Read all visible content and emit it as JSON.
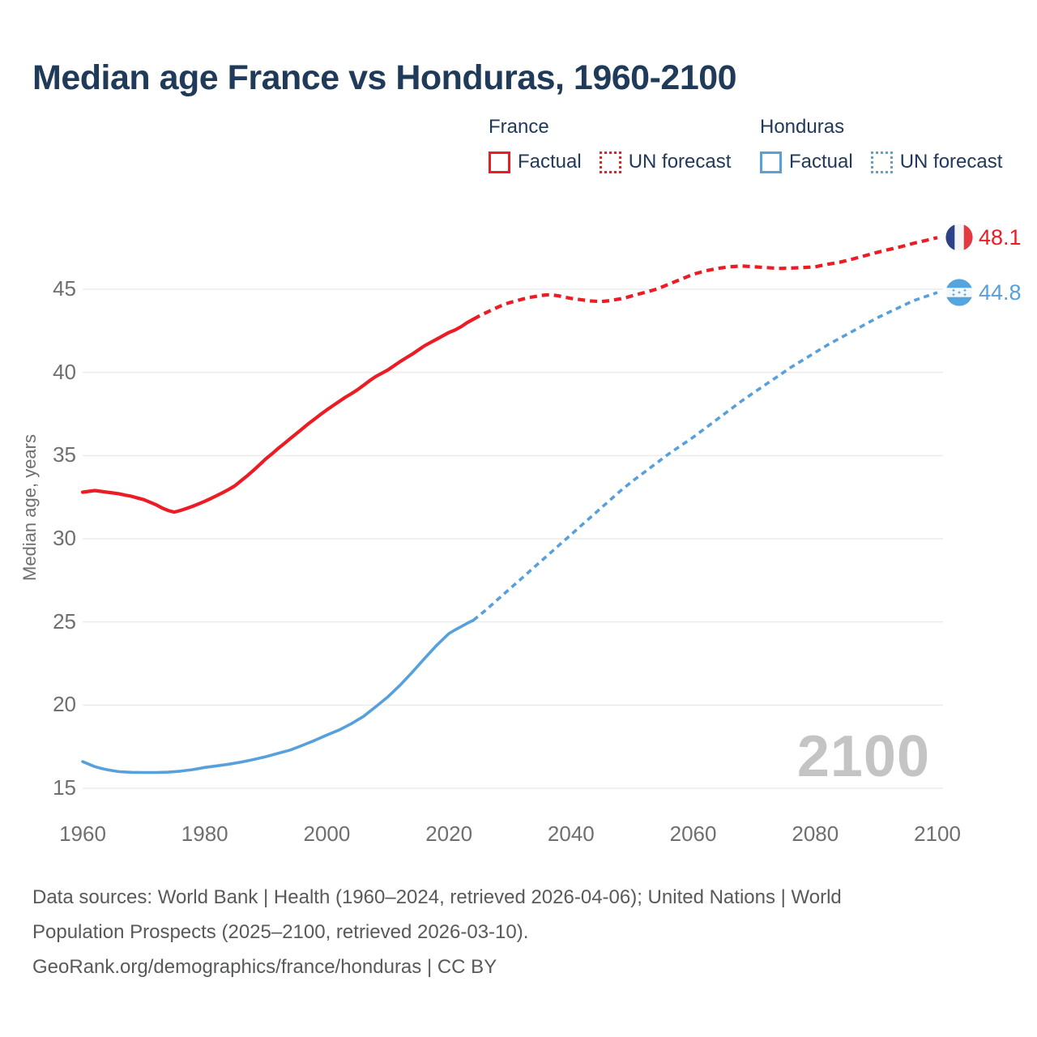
{
  "header": {
    "title": "Median age France vs Honduras, 1960-2100"
  },
  "legend": {
    "groups": [
      {
        "name": "France",
        "color": "#ec1c24",
        "items": [
          {
            "label": "Factual",
            "style": "solid"
          },
          {
            "label": "UN forecast",
            "style": "dotted"
          }
        ]
      },
      {
        "name": "Honduras",
        "color": "#57a0db",
        "items": [
          {
            "label": "Factual",
            "style": "solid"
          },
          {
            "label": "UN forecast",
            "style": "dotted"
          }
        ]
      }
    ]
  },
  "chart_data": {
    "type": "line",
    "title": "Median age France vs Honduras, 1960-2100",
    "xlabel": "",
    "ylabel": "Median age, years",
    "xlim": [
      1960,
      2100
    ],
    "ylim": [
      15,
      49
    ],
    "x_ticks": [
      1960,
      1980,
      2000,
      2020,
      2040,
      2060,
      2080,
      2100
    ],
    "y_ticks": [
      15,
      20,
      25,
      30,
      35,
      40,
      45
    ],
    "grid": "horizontal",
    "legend_position": "top-right",
    "watermark": "2100",
    "series": [
      {
        "name": "France factual",
        "color": "#ec1c24",
        "dash": "solid",
        "width": 4.2,
        "points": [
          [
            1960,
            32.8
          ],
          [
            1961,
            32.85
          ],
          [
            1962,
            32.9
          ],
          [
            1963,
            32.85
          ],
          [
            1964,
            32.8
          ],
          [
            1965,
            32.75
          ],
          [
            1966,
            32.7
          ],
          [
            1967,
            32.62
          ],
          [
            1968,
            32.55
          ],
          [
            1969,
            32.45
          ],
          [
            1970,
            32.35
          ],
          [
            1971,
            32.2
          ],
          [
            1972,
            32.05
          ],
          [
            1973,
            31.85
          ],
          [
            1974,
            31.7
          ],
          [
            1975,
            31.6
          ],
          [
            1976,
            31.7
          ],
          [
            1977,
            31.82
          ],
          [
            1978,
            31.95
          ],
          [
            1979,
            32.1
          ],
          [
            1980,
            32.25
          ],
          [
            1981,
            32.42
          ],
          [
            1982,
            32.6
          ],
          [
            1983,
            32.78
          ],
          [
            1984,
            32.98
          ],
          [
            1985,
            33.2
          ],
          [
            1986,
            33.5
          ],
          [
            1987,
            33.8
          ],
          [
            1988,
            34.12
          ],
          [
            1989,
            34.45
          ],
          [
            1990,
            34.8
          ],
          [
            1991,
            35.1
          ],
          [
            1992,
            35.42
          ],
          [
            1993,
            35.72
          ],
          [
            1994,
            36.02
          ],
          [
            1995,
            36.32
          ],
          [
            1996,
            36.62
          ],
          [
            1997,
            36.92
          ],
          [
            1998,
            37.2
          ],
          [
            1999,
            37.48
          ],
          [
            2000,
            37.75
          ],
          [
            2001,
            38.0
          ],
          [
            2002,
            38.25
          ],
          [
            2003,
            38.5
          ],
          [
            2004,
            38.72
          ],
          [
            2005,
            38.95
          ],
          [
            2006,
            39.22
          ],
          [
            2007,
            39.5
          ],
          [
            2008,
            39.75
          ],
          [
            2009,
            39.95
          ],
          [
            2010,
            40.15
          ],
          [
            2011,
            40.4
          ],
          [
            2012,
            40.65
          ],
          [
            2013,
            40.88
          ],
          [
            2014,
            41.1
          ],
          [
            2015,
            41.35
          ],
          [
            2016,
            41.6
          ],
          [
            2017,
            41.8
          ],
          [
            2018,
            42.0
          ],
          [
            2019,
            42.2
          ],
          [
            2020,
            42.4
          ],
          [
            2021,
            42.55
          ],
          [
            2022,
            42.75
          ],
          [
            2023,
            43.0
          ],
          [
            2024,
            43.2
          ]
        ]
      },
      {
        "name": "France UN forecast",
        "color": "#ec1c24",
        "dash": "9 6",
        "width": 4.2,
        "points": [
          [
            2024,
            43.2
          ],
          [
            2025,
            43.4
          ],
          [
            2026,
            43.58
          ],
          [
            2027,
            43.75
          ],
          [
            2028,
            43.92
          ],
          [
            2029,
            44.08
          ],
          [
            2030,
            44.2
          ],
          [
            2031,
            44.3
          ],
          [
            2032,
            44.4
          ],
          [
            2033,
            44.5
          ],
          [
            2034,
            44.55
          ],
          [
            2035,
            44.62
          ],
          [
            2036,
            44.66
          ],
          [
            2037,
            44.65
          ],
          [
            2038,
            44.6
          ],
          [
            2039,
            44.52
          ],
          [
            2040,
            44.45
          ],
          [
            2041,
            44.4
          ],
          [
            2042,
            44.35
          ],
          [
            2043,
            44.3
          ],
          [
            2044,
            44.28
          ],
          [
            2045,
            44.26
          ],
          [
            2046,
            44.3
          ],
          [
            2047,
            44.35
          ],
          [
            2048,
            44.42
          ],
          [
            2049,
            44.5
          ],
          [
            2050,
            44.6
          ],
          [
            2052,
            44.8
          ],
          [
            2054,
            45.0
          ],
          [
            2056,
            45.3
          ],
          [
            2058,
            45.6
          ],
          [
            2060,
            45.9
          ],
          [
            2062,
            46.1
          ],
          [
            2064,
            46.25
          ],
          [
            2066,
            46.35
          ],
          [
            2068,
            46.4
          ],
          [
            2070,
            46.35
          ],
          [
            2072,
            46.3
          ],
          [
            2074,
            46.25
          ],
          [
            2076,
            46.27
          ],
          [
            2078,
            46.3
          ],
          [
            2080,
            46.35
          ],
          [
            2082,
            46.5
          ],
          [
            2084,
            46.62
          ],
          [
            2086,
            46.8
          ],
          [
            2088,
            47.0
          ],
          [
            2090,
            47.2
          ],
          [
            2092,
            47.38
          ],
          [
            2094,
            47.55
          ],
          [
            2096,
            47.75
          ],
          [
            2098,
            47.92
          ],
          [
            2100,
            48.1
          ]
        ]
      },
      {
        "name": "Honduras factual",
        "color": "#57a0db",
        "dash": "solid",
        "width": 3.6,
        "points": [
          [
            1960,
            16.6
          ],
          [
            1961,
            16.45
          ],
          [
            1962,
            16.3
          ],
          [
            1963,
            16.2
          ],
          [
            1964,
            16.12
          ],
          [
            1965,
            16.05
          ],
          [
            1966,
            16.0
          ],
          [
            1967,
            15.98
          ],
          [
            1968,
            15.96
          ],
          [
            1970,
            15.95
          ],
          [
            1972,
            15.95
          ],
          [
            1974,
            15.97
          ],
          [
            1976,
            16.03
          ],
          [
            1978,
            16.12
          ],
          [
            1980,
            16.25
          ],
          [
            1982,
            16.35
          ],
          [
            1984,
            16.45
          ],
          [
            1986,
            16.58
          ],
          [
            1988,
            16.73
          ],
          [
            1990,
            16.9
          ],
          [
            1992,
            17.1
          ],
          [
            1994,
            17.3
          ],
          [
            1996,
            17.58
          ],
          [
            1998,
            17.88
          ],
          [
            2000,
            18.2
          ],
          [
            2002,
            18.5
          ],
          [
            2004,
            18.88
          ],
          [
            2006,
            19.32
          ],
          [
            2008,
            19.9
          ],
          [
            2010,
            20.5
          ],
          [
            2012,
            21.2
          ],
          [
            2014,
            21.98
          ],
          [
            2016,
            22.8
          ],
          [
            2018,
            23.6
          ],
          [
            2020,
            24.3
          ],
          [
            2021,
            24.52
          ],
          [
            2022,
            24.72
          ],
          [
            2023,
            24.92
          ],
          [
            2024,
            25.1
          ]
        ]
      },
      {
        "name": "Honduras UN forecast",
        "color": "#57a0db",
        "dash": "7 5.5",
        "width": 3.6,
        "points": [
          [
            2024,
            25.1
          ],
          [
            2026,
            25.7
          ],
          [
            2028,
            26.35
          ],
          [
            2030,
            27.0
          ],
          [
            2032,
            27.65
          ],
          [
            2034,
            28.3
          ],
          [
            2036,
            28.95
          ],
          [
            2038,
            29.6
          ],
          [
            2040,
            30.25
          ],
          [
            2042,
            30.9
          ],
          [
            2044,
            31.55
          ],
          [
            2046,
            32.2
          ],
          [
            2048,
            32.85
          ],
          [
            2050,
            33.45
          ],
          [
            2052,
            34.0
          ],
          [
            2054,
            34.55
          ],
          [
            2056,
            35.1
          ],
          [
            2058,
            35.6
          ],
          [
            2060,
            36.1
          ],
          [
            2062,
            36.65
          ],
          [
            2064,
            37.2
          ],
          [
            2066,
            37.75
          ],
          [
            2068,
            38.3
          ],
          [
            2070,
            38.8
          ],
          [
            2072,
            39.3
          ],
          [
            2074,
            39.8
          ],
          [
            2076,
            40.3
          ],
          [
            2078,
            40.75
          ],
          [
            2080,
            41.2
          ],
          [
            2082,
            41.65
          ],
          [
            2084,
            42.05
          ],
          [
            2086,
            42.45
          ],
          [
            2088,
            42.85
          ],
          [
            2090,
            43.25
          ],
          [
            2092,
            43.6
          ],
          [
            2094,
            43.95
          ],
          [
            2096,
            44.3
          ],
          [
            2098,
            44.55
          ],
          [
            2100,
            44.8
          ]
        ]
      }
    ],
    "end_labels": [
      {
        "series": "France",
        "value": "48.1",
        "flag": "france"
      },
      {
        "series": "Honduras",
        "value": "44.8",
        "flag": "honduras"
      }
    ]
  },
  "footer": {
    "sources_line": "Data sources: World Bank | Health (1960–2024, retrieved 2026-04-06); United Nations | World Population Prospects (2025–2100, retrieved 2026-03-10).",
    "url_line": "GeoRank.org/demographics/france/honduras | CC BY"
  }
}
